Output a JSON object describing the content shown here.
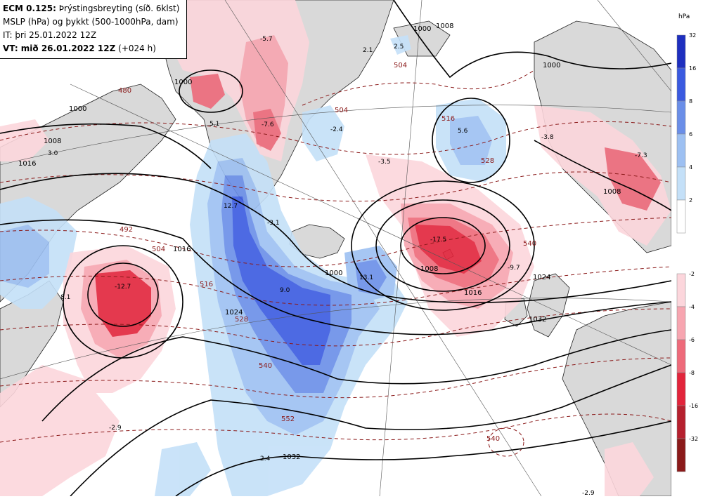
{
  "title": {
    "line1_bold": "ECM 0.125:",
    "line1_rest": " Þrýstingsbreyting (síð. 6klst)",
    "line2": "MSLP (hPa) og þykkt (500-1000hPa, dam)",
    "line3": "IT: þri 25.01.2022 12Z",
    "line4_bold": "VT: mið 26.01.2022 12Z",
    "line4_rest": " (+024 h)"
  },
  "legend": {
    "unit": "hPa",
    "positive": [
      {
        "label": "32",
        "color": "#1e2fbf"
      },
      {
        "label": "16",
        "color": "#3a5ae0"
      },
      {
        "label": "8",
        "color": "#6a8ee8"
      },
      {
        "label": "6",
        "color": "#9dc0f2"
      },
      {
        "label": "4",
        "color": "#c4e0f8"
      },
      {
        "label": "2",
        "color": "#ffffff"
      }
    ],
    "negative": [
      {
        "label": "-2",
        "color": "#fcd6dc"
      },
      {
        "label": "-4",
        "color": "#f7a5b0"
      },
      {
        "label": "-6",
        "color": "#ee6a7a"
      },
      {
        "label": "-8",
        "color": "#e2243b"
      },
      {
        "label": "-16",
        "color": "#b5202e"
      },
      {
        "label": "-32",
        "color": "#8b1a1a"
      }
    ]
  },
  "map_labels": {
    "change": [
      "-5.7",
      "-7.6",
      "5.1",
      "3.0",
      "2.1",
      "2.5",
      "-2.4",
      "-3.5",
      "5.6",
      "-3.8",
      "-7.3",
      "12.7",
      "-3.1",
      "9.0",
      "13.1",
      "-17.5",
      "-9.7",
      "8.1",
      "-12.7",
      "-2.9",
      "2.4",
      "-2.9"
    ],
    "mslp": [
      "1000",
      "1000",
      "1008",
      "1016",
      "1000",
      "1008",
      "1016",
      "1024",
      "1032",
      "1032",
      "1024",
      "1008",
      "1000",
      "1016",
      "1008",
      "1000"
    ],
    "thickness": [
      "504",
      "492",
      "504",
      "516",
      "528",
      "540",
      "552",
      "516",
      "528",
      "504",
      "480",
      "540",
      "540"
    ]
  }
}
